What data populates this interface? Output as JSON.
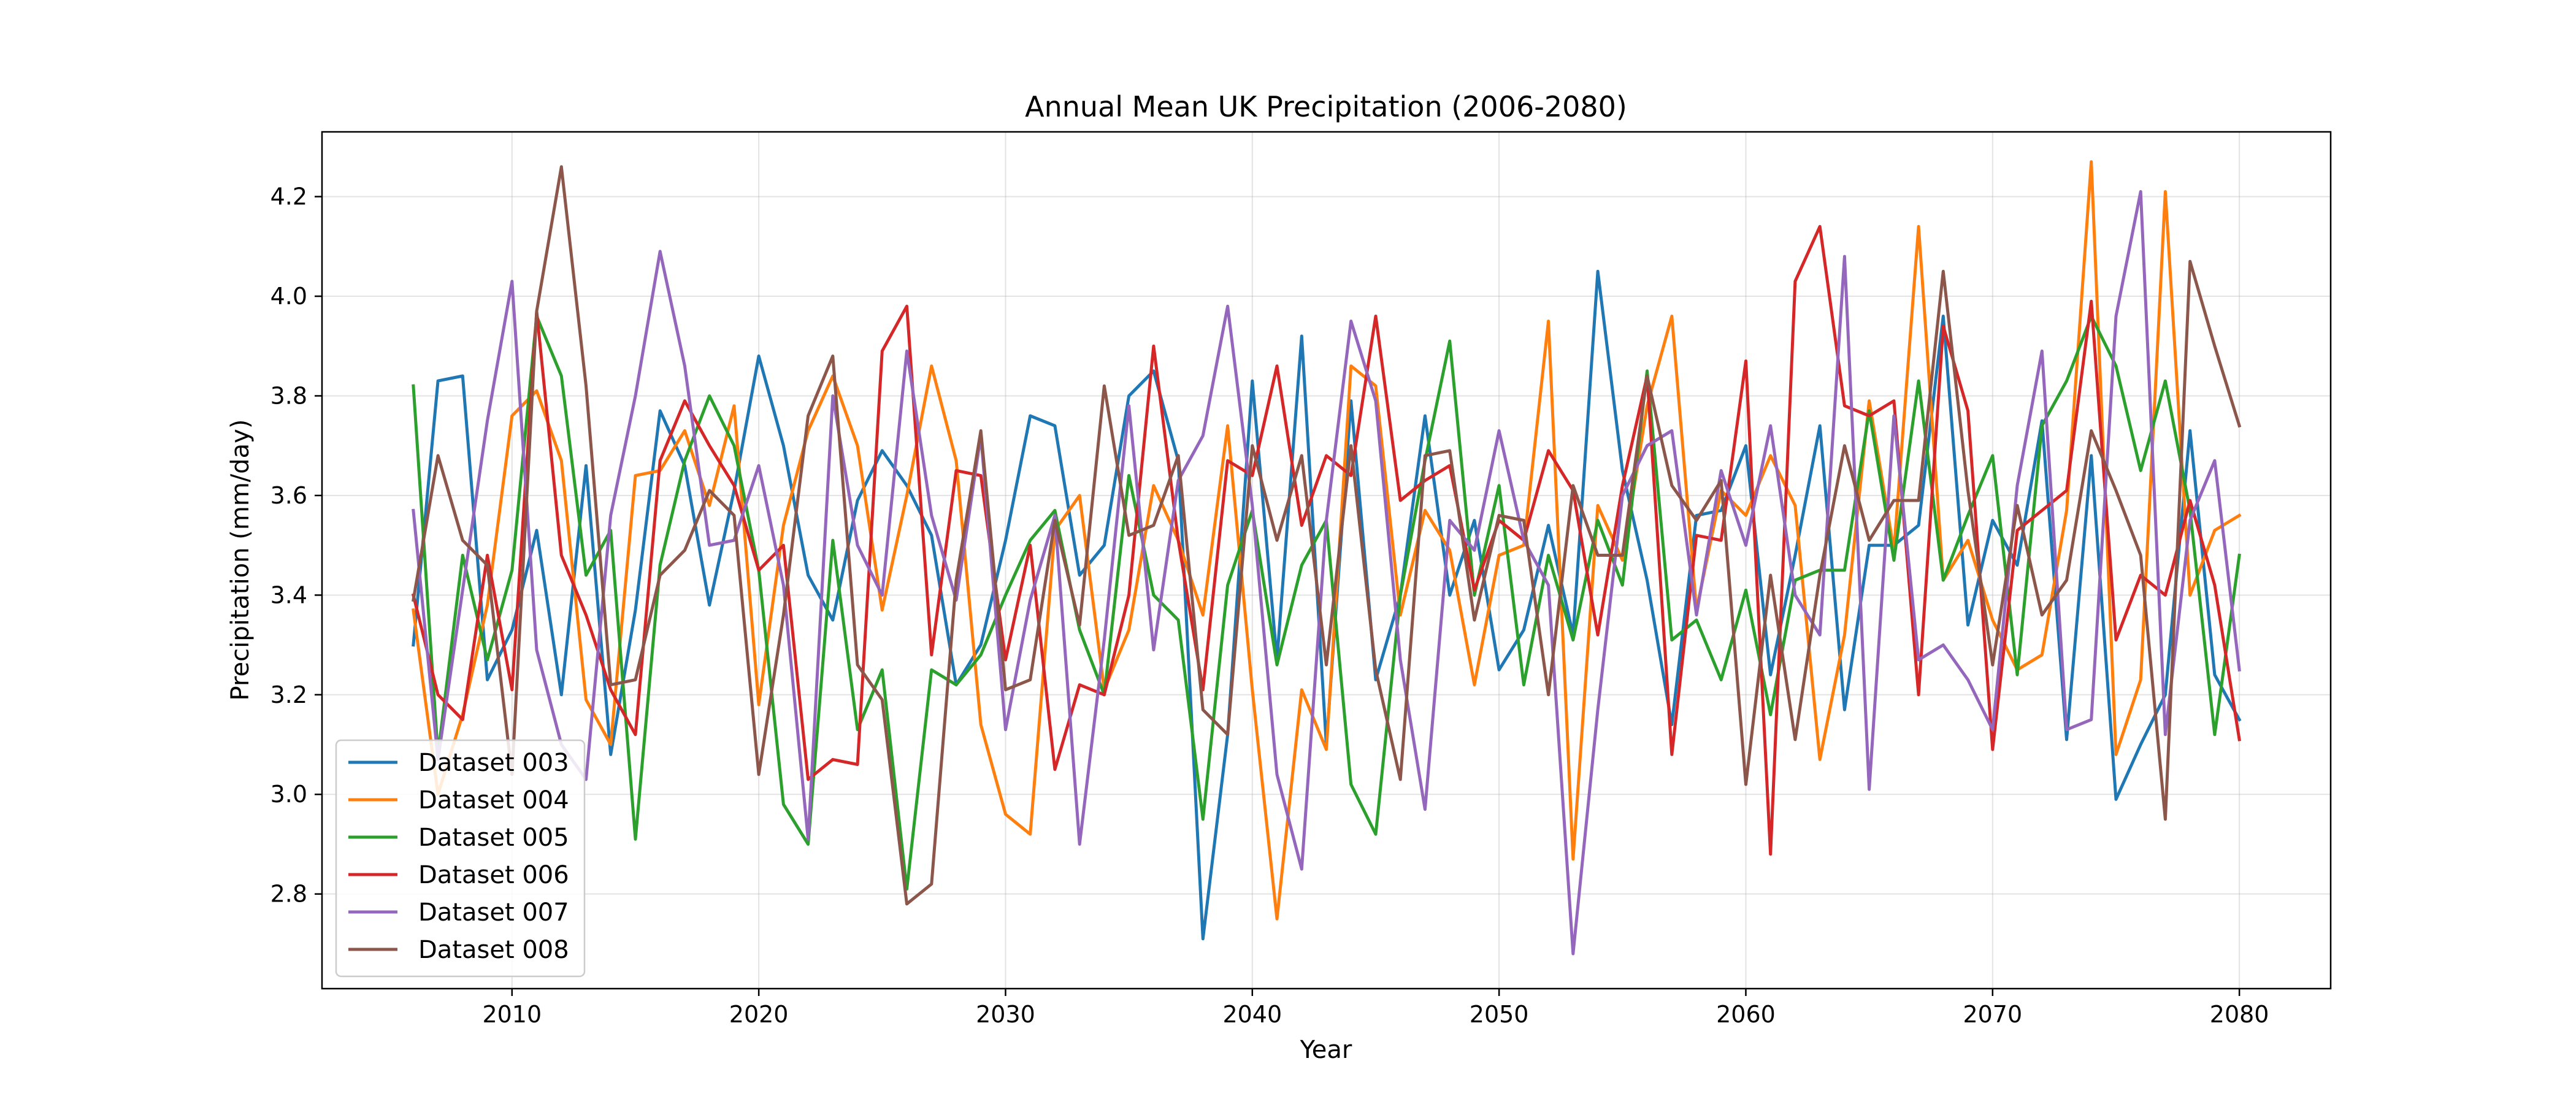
{
  "chart_data": {
    "type": "line",
    "title": "Annual Mean UK Precipitation (2006-2080)",
    "xlabel": "Year",
    "ylabel": "Precipitation (mm/day)",
    "xlim": [
      2002.3,
      2083.7
    ],
    "ylim": [
      2.61,
      4.33
    ],
    "xticks": [
      2010,
      2020,
      2030,
      2040,
      2050,
      2060,
      2070,
      2080
    ],
    "yticks": [
      2.8,
      3.0,
      3.2,
      3.4,
      3.6,
      3.8,
      4.0,
      4.2
    ],
    "ytick_labels": [
      "2.8",
      "3.0",
      "3.2",
      "3.4",
      "3.6",
      "3.8",
      "4.0",
      "4.2"
    ],
    "grid": true,
    "legend_position": "lower-left",
    "x": [
      2006,
      2007,
      2008,
      2009,
      2010,
      2011,
      2012,
      2013,
      2014,
      2015,
      2016,
      2017,
      2018,
      2019,
      2020,
      2021,
      2022,
      2023,
      2024,
      2025,
      2026,
      2027,
      2028,
      2029,
      2030,
      2031,
      2032,
      2033,
      2034,
      2035,
      2036,
      2037,
      2038,
      2039,
      2040,
      2041,
      2042,
      2043,
      2044,
      2045,
      2046,
      2047,
      2048,
      2049,
      2050,
      2051,
      2052,
      2053,
      2054,
      2055,
      2056,
      2057,
      2058,
      2059,
      2060,
      2061,
      2062,
      2063,
      2064,
      2065,
      2066,
      2067,
      2068,
      2069,
      2070,
      2071,
      2072,
      2073,
      2074,
      2075,
      2076,
      2077,
      2078,
      2079,
      2080
    ],
    "series": [
      {
        "name": "Dataset 003",
        "color": "#1f77b4",
        "values": [
          3.3,
          3.83,
          3.84,
          3.23,
          3.33,
          3.53,
          3.2,
          3.66,
          3.08,
          3.37,
          3.77,
          3.66,
          3.38,
          3.61,
          3.88,
          3.7,
          3.44,
          3.35,
          3.59,
          3.69,
          3.62,
          3.52,
          3.22,
          3.3,
          3.51,
          3.76,
          3.74,
          3.44,
          3.5,
          3.8,
          3.85,
          3.67,
          2.71,
          3.12,
          3.83,
          3.27,
          3.92,
          3.1,
          3.79,
          3.23,
          3.4,
          3.76,
          3.4,
          3.55,
          3.25,
          3.33,
          3.54,
          3.32,
          4.05,
          3.65,
          3.43,
          3.14,
          3.56,
          3.57,
          3.7,
          3.24,
          3.48,
          3.74,
          3.17,
          3.5,
          3.5,
          3.54,
          3.96,
          3.34,
          3.55,
          3.46,
          3.75,
          3.11,
          3.68,
          2.99,
          3.1,
          3.2,
          3.73,
          3.24,
          3.15
        ]
      },
      {
        "name": "Dataset 004",
        "color": "#ff7f0e",
        "values": [
          3.37,
          3.0,
          3.16,
          3.38,
          3.76,
          3.81,
          3.67,
          3.19,
          3.1,
          3.64,
          3.65,
          3.73,
          3.58,
          3.78,
          3.18,
          3.54,
          3.73,
          3.84,
          3.7,
          3.37,
          3.6,
          3.86,
          3.67,
          3.14,
          2.96,
          2.92,
          3.53,
          3.6,
          3.21,
          3.33,
          3.62,
          3.51,
          3.36,
          3.74,
          3.21,
          2.75,
          3.21,
          3.09,
          3.86,
          3.82,
          3.36,
          3.57,
          3.49,
          3.22,
          3.48,
          3.5,
          3.95,
          2.87,
          3.58,
          3.47,
          3.78,
          3.96,
          3.37,
          3.61,
          3.56,
          3.68,
          3.58,
          3.07,
          3.32,
          3.79,
          3.49,
          4.14,
          3.43,
          3.51,
          3.35,
          3.25,
          3.28,
          3.57,
          4.27,
          3.08,
          3.23,
          4.21,
          3.4,
          3.53,
          3.56
        ]
      },
      {
        "name": "Dataset 005",
        "color": "#2ca02c",
        "values": [
          3.82,
          3.08,
          3.48,
          3.27,
          3.45,
          3.96,
          3.84,
          3.44,
          3.53,
          2.91,
          3.46,
          3.67,
          3.8,
          3.7,
          3.45,
          2.98,
          2.9,
          3.51,
          3.13,
          3.25,
          2.81,
          3.25,
          3.22,
          3.28,
          3.4,
          3.51,
          3.57,
          3.33,
          3.2,
          3.64,
          3.4,
          3.35,
          2.95,
          3.42,
          3.57,
          3.26,
          3.46,
          3.55,
          3.02,
          2.92,
          3.4,
          3.67,
          3.91,
          3.4,
          3.62,
          3.22,
          3.48,
          3.31,
          3.55,
          3.42,
          3.85,
          3.31,
          3.35,
          3.23,
          3.41,
          3.16,
          3.43,
          3.45,
          3.45,
          3.77,
          3.47,
          3.83,
          3.43,
          3.56,
          3.68,
          3.24,
          3.74,
          3.83,
          3.96,
          3.86,
          3.65,
          3.83,
          3.57,
          3.12,
          3.48
        ]
      },
      {
        "name": "Dataset 006",
        "color": "#d62728",
        "values": [
          3.4,
          3.2,
          3.15,
          3.48,
          3.21,
          3.97,
          3.48,
          3.36,
          3.21,
          3.12,
          3.67,
          3.79,
          3.7,
          3.62,
          3.45,
          3.5,
          3.03,
          3.07,
          3.06,
          3.89,
          3.98,
          3.28,
          3.65,
          3.64,
          3.27,
          3.5,
          3.05,
          3.22,
          3.2,
          3.4,
          3.9,
          3.51,
          3.21,
          3.67,
          3.64,
          3.86,
          3.54,
          3.68,
          3.64,
          3.96,
          3.59,
          3.63,
          3.66,
          3.41,
          3.55,
          3.51,
          3.69,
          3.61,
          3.32,
          3.62,
          3.84,
          3.08,
          3.52,
          3.51,
          3.87,
          2.88,
          4.03,
          4.14,
          3.78,
          3.76,
          3.79,
          3.2,
          3.94,
          3.77,
          3.09,
          3.53,
          3.57,
          3.61,
          3.99,
          3.31,
          3.44,
          3.4,
          3.59,
          3.42,
          3.11
        ]
      },
      {
        "name": "Dataset 007",
        "color": "#9467bd",
        "values": [
          3.57,
          3.07,
          3.41,
          3.75,
          4.03,
          3.29,
          3.1,
          3.03,
          3.56,
          3.8,
          4.09,
          3.86,
          3.5,
          3.51,
          3.66,
          3.42,
          2.91,
          3.8,
          3.5,
          3.4,
          3.89,
          3.56,
          3.39,
          3.72,
          3.13,
          3.39,
          3.56,
          2.9,
          3.31,
          3.78,
          3.29,
          3.63,
          3.72,
          3.98,
          3.58,
          3.04,
          2.85,
          3.55,
          3.95,
          3.79,
          3.27,
          2.97,
          3.55,
          3.49,
          3.73,
          3.51,
          3.42,
          2.68,
          3.17,
          3.6,
          3.7,
          3.73,
          3.36,
          3.65,
          3.5,
          3.74,
          3.4,
          3.32,
          4.08,
          3.01,
          3.76,
          3.27,
          3.3,
          3.23,
          3.13,
          3.62,
          3.89,
          3.13,
          3.15,
          3.96,
          4.21,
          3.12,
          3.55,
          3.67,
          3.25
        ]
      },
      {
        "name": "Dataset 008",
        "color": "#8c564b",
        "values": [
          3.39,
          3.68,
          3.51,
          3.46,
          3.04,
          3.97,
          4.26,
          3.82,
          3.22,
          3.23,
          3.44,
          3.49,
          3.61,
          3.56,
          3.04,
          3.36,
          3.76,
          3.88,
          3.26,
          3.19,
          2.78,
          2.82,
          3.43,
          3.73,
          3.21,
          3.23,
          3.55,
          3.34,
          3.82,
          3.52,
          3.54,
          3.68,
          3.17,
          3.12,
          3.7,
          3.51,
          3.68,
          3.26,
          3.7,
          3.25,
          3.03,
          3.68,
          3.69,
          3.35,
          3.56,
          3.55,
          3.2,
          3.62,
          3.48,
          3.48,
          3.84,
          3.62,
          3.55,
          3.63,
          3.02,
          3.44,
          3.11,
          3.44,
          3.7,
          3.51,
          3.59,
          3.59,
          4.05,
          3.61,
          3.26,
          3.58,
          3.36,
          3.43,
          3.73,
          3.61,
          3.48,
          2.95,
          4.07,
          3.9,
          3.74
        ]
      }
    ]
  }
}
